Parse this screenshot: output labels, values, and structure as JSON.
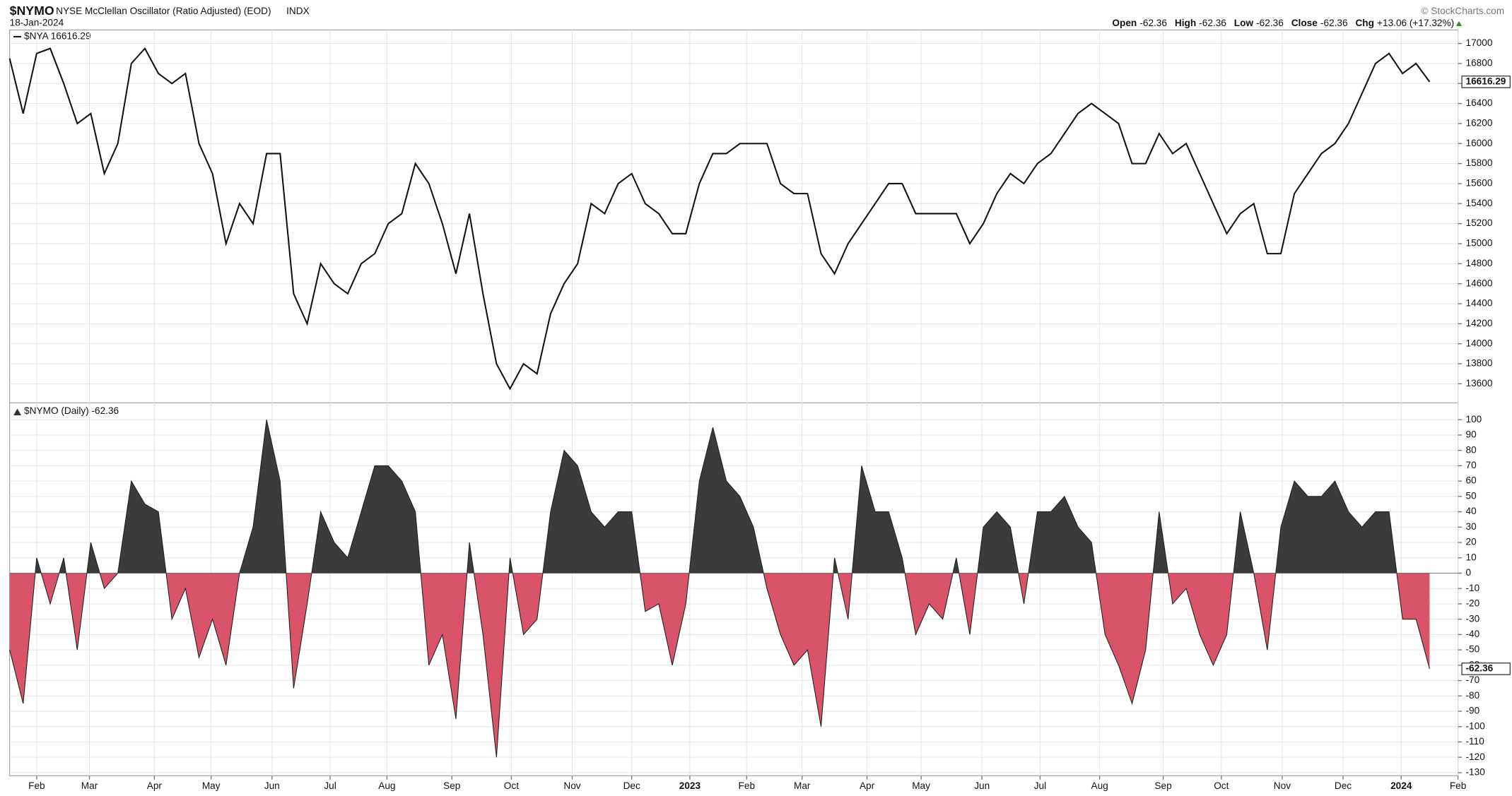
{
  "header": {
    "symbol": "$NYMO",
    "name": "NYSE McClellan Oscillator (Ratio Adjusted) (EOD)",
    "exchange": "INDX",
    "date": "18-Jan-2024",
    "copyright": "© StockCharts.com",
    "quote": [
      {
        "label": "Open",
        "value": "-62.36"
      },
      {
        "label": "High",
        "value": "-62.36"
      },
      {
        "label": "Low",
        "value": "-62.36"
      },
      {
        "label": "Close",
        "value": "-62.36"
      },
      {
        "label": "Chg",
        "value": "+13.06 (+17.32%)"
      }
    ]
  },
  "chart_data": [
    {
      "type": "line",
      "legend": "$NYA 16616.29",
      "color": "#111111",
      "grid": true,
      "x": [
        0,
        1,
        2,
        3,
        4,
        5,
        6,
        7,
        8,
        9,
        10,
        11,
        12,
        13,
        14,
        15,
        16,
        17,
        18,
        19,
        20,
        21,
        22,
        23,
        24,
        25,
        26,
        27,
        28,
        29,
        30,
        31,
        32,
        33,
        34,
        35,
        36,
        37,
        38,
        39,
        40,
        41,
        42,
        43,
        44,
        45,
        46,
        47,
        48,
        49,
        50,
        51,
        52,
        53,
        54,
        55,
        56,
        57,
        58,
        59,
        60,
        61,
        62,
        63,
        64,
        65,
        66,
        67,
        68,
        69,
        70,
        71,
        72,
        73,
        74,
        75,
        76,
        77,
        78,
        79,
        80,
        81,
        82,
        83,
        84,
        85,
        86,
        87,
        88,
        89,
        90,
        91,
        92,
        93,
        94,
        95,
        96,
        97,
        98,
        99,
        100,
        101,
        102,
        103,
        104,
        105
      ],
      "values": [
        16850,
        16300,
        16900,
        16950,
        16600,
        16200,
        16300,
        15700,
        16000,
        16800,
        16950,
        16700,
        16600,
        16700,
        16000,
        15700,
        15000,
        15400,
        15200,
        15900,
        15900,
        14500,
        14200,
        14800,
        14600,
        14500,
        14800,
        14900,
        15200,
        15300,
        15800,
        15600,
        15200,
        14700,
        15300,
        14500,
        13800,
        13550,
        13800,
        13700,
        14300,
        14600,
        14800,
        15400,
        15300,
        15600,
        15700,
        15400,
        15300,
        15100,
        15100,
        15600,
        15900,
        15900,
        16000,
        16000,
        16000,
        15600,
        15500,
        15500,
        14900,
        14700,
        15000,
        15200,
        15400,
        15600,
        15600,
        15300,
        15300,
        15300,
        15300,
        15000,
        15200,
        15500,
        15700,
        15600,
        15800,
        15900,
        16100,
        16300,
        16400,
        16300,
        16200,
        15800,
        15800,
        16100,
        15900,
        16000,
        15700,
        15400,
        15100,
        15300,
        15400,
        14900,
        14900,
        15500,
        15700,
        15900,
        16000,
        16200,
        16500,
        16800,
        16900,
        16700,
        16800,
        16616.29
      ],
      "xlim": [
        0,
        107.1
      ],
      "ylim": [
        13410,
        17135
      ],
      "yticks": [
        13600,
        13800,
        14000,
        14200,
        14400,
        14600,
        14800,
        15000,
        15200,
        15400,
        15600,
        15800,
        16000,
        16200,
        16400,
        16600,
        16800,
        17000
      ]
    },
    {
      "type": "area",
      "legend": "$NYMO (Daily) -62.36",
      "color": "#3b3b3b",
      "negative_color": "#d9546a",
      "grid": true,
      "x": [
        0,
        1,
        2,
        3,
        4,
        5,
        6,
        7,
        8,
        9,
        10,
        11,
        12,
        13,
        14,
        15,
        16,
        17,
        18,
        19,
        20,
        21,
        22,
        23,
        24,
        25,
        26,
        27,
        28,
        29,
        30,
        31,
        32,
        33,
        34,
        35,
        36,
        37,
        38,
        39,
        40,
        41,
        42,
        43,
        44,
        45,
        46,
        47,
        48,
        49,
        50,
        51,
        52,
        53,
        54,
        55,
        56,
        57,
        58,
        59,
        60,
        61,
        62,
        63,
        64,
        65,
        66,
        67,
        68,
        69,
        70,
        71,
        72,
        73,
        74,
        75,
        76,
        77,
        78,
        79,
        80,
        81,
        82,
        83,
        84,
        85,
        86,
        87,
        88,
        89,
        90,
        91,
        92,
        93,
        94,
        95,
        96,
        97,
        98,
        99,
        100,
        101,
        102,
        103,
        104,
        105
      ],
      "values": [
        -50,
        -85,
        10,
        -20,
        10,
        -50,
        20,
        -10,
        0,
        60,
        45,
        40,
        -30,
        -10,
        -55,
        -30,
        -60,
        0,
        30,
        100,
        60,
        -75,
        -20,
        40,
        20,
        10,
        40,
        70,
        70,
        60,
        40,
        -60,
        -40,
        -95,
        20,
        -40,
        -120,
        10,
        -40,
        -30,
        40,
        80,
        70,
        40,
        30,
        40,
        40,
        -25,
        -20,
        -60,
        -20,
        60,
        95,
        60,
        50,
        30,
        -10,
        -40,
        -60,
        -50,
        -100,
        10,
        -30,
        70,
        40,
        40,
        10,
        -40,
        -20,
        -30,
        10,
        -40,
        30,
        40,
        30,
        -20,
        40,
        40,
        50,
        30,
        20,
        -40,
        -60,
        -85,
        -50,
        40,
        -20,
        -10,
        -40,
        -60,
        -40,
        40,
        0,
        -50,
        30,
        60,
        50,
        50,
        60,
        40,
        30,
        40,
        40,
        -30,
        -30,
        -62.36
      ],
      "xlim": [
        0,
        107.1
      ],
      "ylim": [
        -132,
        111
      ],
      "yticks": [
        -130,
        -120,
        -110,
        -100,
        -90,
        -80,
        -70,
        -60,
        -50,
        -40,
        -30,
        -20,
        -10,
        0,
        10,
        20,
        30,
        40,
        50,
        60,
        70,
        80,
        90,
        100
      ],
      "xticks": [
        {
          "value": 2.0,
          "label": "Feb"
        },
        {
          "value": 5.9,
          "label": "Mar"
        },
        {
          "value": 10.7,
          "label": "Apr"
        },
        {
          "value": 14.9,
          "label": "May"
        },
        {
          "value": 19.4,
          "label": "Jun"
        },
        {
          "value": 23.7,
          "label": "Jul"
        },
        {
          "value": 27.9,
          "label": "Aug"
        },
        {
          "value": 32.7,
          "label": "Sep"
        },
        {
          "value": 37.1,
          "label": "Oct"
        },
        {
          "value": 41.6,
          "label": "Nov"
        },
        {
          "value": 46.0,
          "label": "Dec"
        },
        {
          "value": 50.3,
          "label": "2023"
        },
        {
          "value": 54.5,
          "label": "Feb"
        },
        {
          "value": 58.6,
          "label": "Mar"
        },
        {
          "value": 63.4,
          "label": "Apr"
        },
        {
          "value": 67.4,
          "label": "May"
        },
        {
          "value": 71.9,
          "label": "Jun"
        },
        {
          "value": 76.2,
          "label": "Jul"
        },
        {
          "value": 80.6,
          "label": "Aug"
        },
        {
          "value": 85.3,
          "label": "Sep"
        },
        {
          "value": 89.6,
          "label": "Oct"
        },
        {
          "value": 94.1,
          "label": "Nov"
        },
        {
          "value": 98.6,
          "label": "Dec"
        },
        {
          "value": 102.9,
          "label": "2024"
        },
        {
          "value": 107.1,
          "label": "Feb"
        }
      ]
    }
  ]
}
